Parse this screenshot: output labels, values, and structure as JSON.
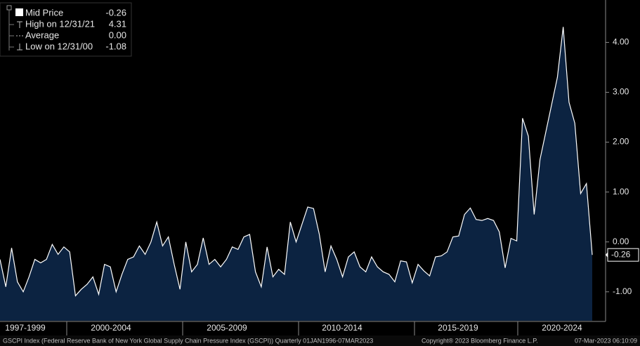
{
  "chart_data": {
    "type": "area",
    "series": [
      {
        "name": "Mid Price",
        "color": "#ffffff",
        "fill": "#0c2341",
        "values": [
          -0.35,
          -0.9,
          -0.12,
          -0.8,
          -1.0,
          -0.7,
          -0.35,
          -0.42,
          -0.35,
          -0.05,
          -0.25,
          -0.1,
          -0.2,
          -1.08,
          -0.95,
          -0.85,
          -0.7,
          -1.05,
          -0.45,
          -0.5,
          -1.0,
          -0.65,
          -0.35,
          -0.3,
          -0.08,
          -0.25,
          0.0,
          0.4,
          -0.08,
          0.1,
          -0.45,
          -0.95,
          0.0,
          -0.6,
          -0.45,
          0.08,
          -0.45,
          -0.35,
          -0.5,
          -0.35,
          -0.1,
          -0.15,
          0.1,
          0.15,
          -0.6,
          -0.9,
          -0.1,
          -0.7,
          -0.55,
          -0.65,
          0.4,
          0.0,
          0.35,
          0.7,
          0.67,
          0.15,
          -0.6,
          -0.08,
          -0.35,
          -0.7,
          -0.3,
          -0.2,
          -0.5,
          -0.6,
          -0.3,
          -0.5,
          -0.6,
          -0.65,
          -0.8,
          -0.38,
          -0.4,
          -0.82,
          -0.45,
          -0.58,
          -0.68,
          -0.3,
          -0.28,
          -0.2,
          0.1,
          0.12,
          0.55,
          0.68,
          0.45,
          0.43,
          0.47,
          0.43,
          0.2,
          -0.52,
          0.07,
          0.02,
          2.48,
          2.12,
          0.55,
          1.65,
          2.2,
          2.75,
          3.3,
          4.31,
          2.8,
          2.38,
          0.97,
          1.17,
          -0.26
        ]
      }
    ],
    "stats": [
      {
        "label": "High on 12/31/21",
        "value": 4.31
      },
      {
        "label": "Average",
        "value": 0,
        "value_label": "0.00"
      },
      {
        "label": "Low on 12/31/00",
        "value": -1.08
      }
    ],
    "x_labels": [
      "1997-1999",
      "2000-2004",
      "2005-2009",
      "2010-2014",
      "2015-2019",
      "2020-2024"
    ],
    "ylim": [
      -1.58,
      4.85
    ],
    "yticks": [
      {
        "value": -1,
        "label": "-1.00"
      },
      {
        "value": 0,
        "label": "0.00"
      },
      {
        "value": 1,
        "label": "1.00"
      },
      {
        "value": 2,
        "label": "2.00"
      },
      {
        "value": 3,
        "label": "3.00"
      },
      {
        "value": 4,
        "label": "4.00"
      }
    ],
    "footer": [
      "GSCPI Index (Federal Reserve Bank of New York Global Supply Chain Pressure Index (GSCPI))  Quarterly 01JAN1996-07MAR2023",
      "Copyright® 2023 Bloomberg Finance L.P.",
      "07-Mar-2023 06:10:09"
    ]
  }
}
